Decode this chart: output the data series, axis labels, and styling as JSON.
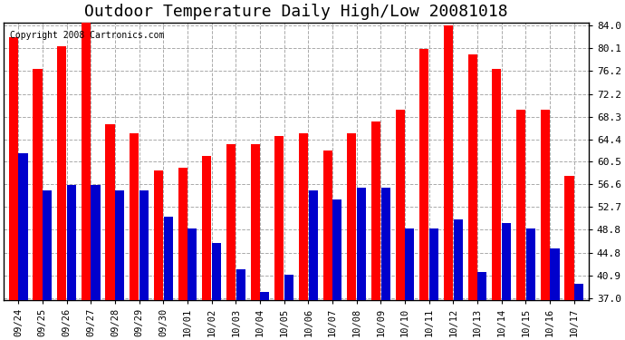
{
  "title": "Outdoor Temperature Daily High/Low 20081018",
  "copyright": "Copyright 2008 Cartronics.com",
  "dates": [
    "09/24",
    "09/25",
    "09/26",
    "09/27",
    "09/28",
    "09/29",
    "09/30",
    "10/01",
    "10/02",
    "10/03",
    "10/04",
    "10/05",
    "10/06",
    "10/07",
    "10/08",
    "10/09",
    "10/10",
    "10/11",
    "10/12",
    "10/13",
    "10/14",
    "10/15",
    "10/16",
    "10/17"
  ],
  "highs": [
    82.0,
    76.5,
    80.5,
    85.0,
    67.0,
    65.5,
    59.0,
    59.5,
    61.5,
    63.5,
    63.5,
    65.0,
    65.5,
    62.5,
    65.5,
    67.5,
    69.5,
    80.0,
    84.0,
    79.0,
    76.5,
    69.5,
    69.5,
    58.0
  ],
  "lows": [
    62.0,
    55.5,
    56.5,
    56.5,
    55.5,
    55.5,
    51.0,
    49.0,
    46.5,
    42.0,
    38.0,
    41.0,
    55.5,
    54.0,
    56.0,
    56.0,
    49.0,
    49.0,
    50.5,
    41.5,
    50.0,
    49.0,
    45.5,
    39.5
  ],
  "high_color": "#ff0000",
  "low_color": "#0000cc",
  "yticks": [
    37.0,
    40.9,
    44.8,
    48.8,
    52.7,
    56.6,
    60.5,
    64.4,
    68.3,
    72.2,
    76.2,
    80.1,
    84.0
  ],
  "ymin": 37.0,
  "ymax": 84.0,
  "background_color": "#ffffff",
  "grid_color": "#aaaaaa",
  "title_fontsize": 13
}
